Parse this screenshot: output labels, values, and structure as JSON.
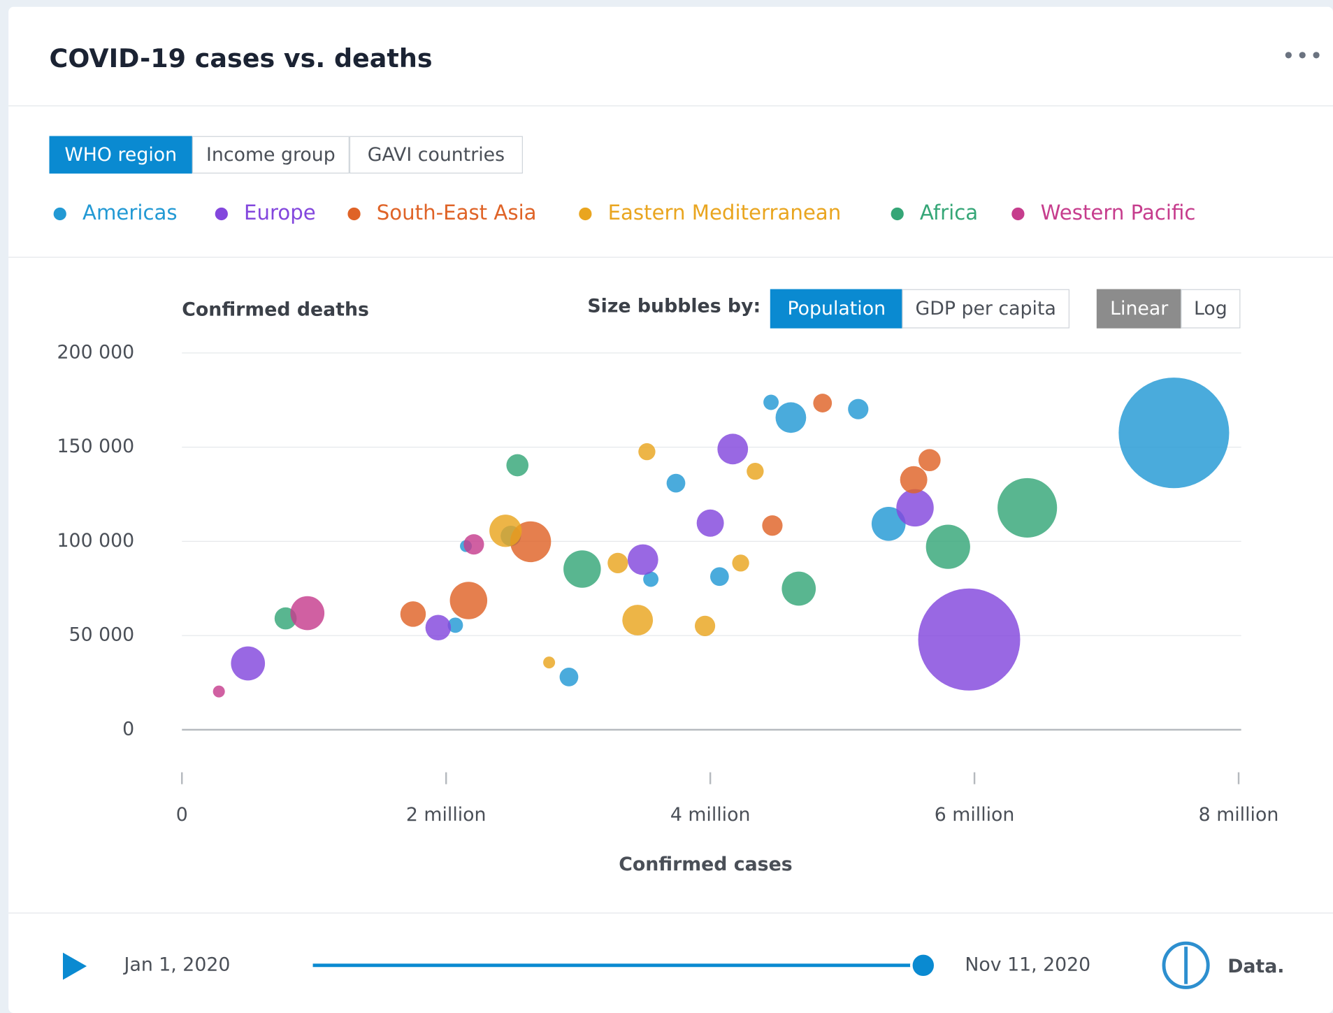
{
  "header": {
    "title": "COVID-19 cases vs. deaths",
    "menu": "•••"
  },
  "tabs": [
    "WHO region",
    "Income group",
    "GAVI countries"
  ],
  "controls": {
    "size_label": "Size bubbles by:",
    "size_options": [
      "Population",
      "GDP per capita"
    ],
    "scale_options": [
      "Linear",
      "Log"
    ]
  },
  "chart_data": {
    "type": "bubble",
    "ylabel": "Confirmed deaths",
    "xlabel": "Confirmed cases",
    "xlim": [
      0,
      8000000
    ],
    "ylim": [
      0,
      200000
    ],
    "xticks": [
      0,
      {
        "value": 2000000,
        "label": "2 million"
      },
      {
        "value": 4000000,
        "label": "4 million"
      },
      {
        "value": 6000000,
        "label": "6 million"
      },
      {
        "value": 8000000,
        "label": "8 million"
      }
    ],
    "yticks": [
      0,
      {
        "value": 50000,
        "label": "50 000"
      },
      {
        "value": 100000,
        "label": "100 000"
      },
      {
        "value": 150000,
        "label": "150 000"
      },
      {
        "value": 200000,
        "label": "200 000"
      }
    ],
    "grid": true,
    "series": [
      {
        "name": "Americas",
        "color": "#2299d4",
        "x": [
          7510000,
          4610000,
          4460000,
          5120000,
          3740000,
          5350000,
          2490000,
          2150000,
          3550000,
          4070000,
          2070000,
          2930000
        ],
        "values": [
          157600,
          165700,
          173800,
          170200,
          130900,
          109300,
          102900,
          97500,
          79900,
          81300,
          55500,
          28000
        ],
        "sizes": [
          4225,
          324,
          81,
          144,
          121,
          400,
          144,
          49,
          81,
          121,
          81,
          121
        ]
      },
      {
        "name": "Europe",
        "color": "#8347dd",
        "x": [
          5960000,
          4170000,
          5550000,
          4000000,
          3490000,
          1940000,
          500000
        ],
        "values": [
          47900,
          149000,
          117800,
          109700,
          90300,
          54200,
          35200
        ],
        "sizes": [
          3600,
          324,
          484,
          256,
          324,
          225,
          400
        ]
      },
      {
        "name": "South-East Asia",
        "color": "#df6327",
        "x": [
          4850000,
          5660000,
          5540000,
          4470000,
          2640000,
          2170000,
          1750000
        ],
        "values": [
          173400,
          143100,
          132700,
          108400,
          99800,
          68600,
          61400
        ],
        "sizes": [
          121,
          169,
          256,
          144,
          576,
          484,
          225
        ]
      },
      {
        "name": "Eastern Mediterranean",
        "color": "#e9a51f",
        "x": [
          3520000,
          4340000,
          2450000,
          3300000,
          4230000,
          3450000,
          3960000,
          2780000
        ],
        "values": [
          147600,
          137200,
          105600,
          88500,
          88500,
          58200,
          55100,
          35700
        ],
        "sizes": [
          100,
          100,
          361,
          144,
          100,
          324,
          144,
          49
        ]
      },
      {
        "name": "Africa",
        "color": "#35a677",
        "x": [
          2540000,
          6400000,
          5800000,
          3030000,
          4670000,
          785000
        ],
        "values": [
          140400,
          117800,
          97100,
          85300,
          74900,
          59100
        ],
        "sizes": [
          169,
          1225,
          676,
          484,
          400,
          169
        ]
      },
      {
        "name": "Western Pacific",
        "color": "#c63d8d",
        "x": [
          2210000,
          950000,
          280000
        ],
        "values": [
          98400,
          61900,
          20300
        ],
        "sizes": [
          144,
          400,
          49
        ]
      }
    ]
  },
  "timeline": {
    "start": "Jan 1, 2020",
    "end": "Nov 11, 2020",
    "brand": "Data."
  }
}
